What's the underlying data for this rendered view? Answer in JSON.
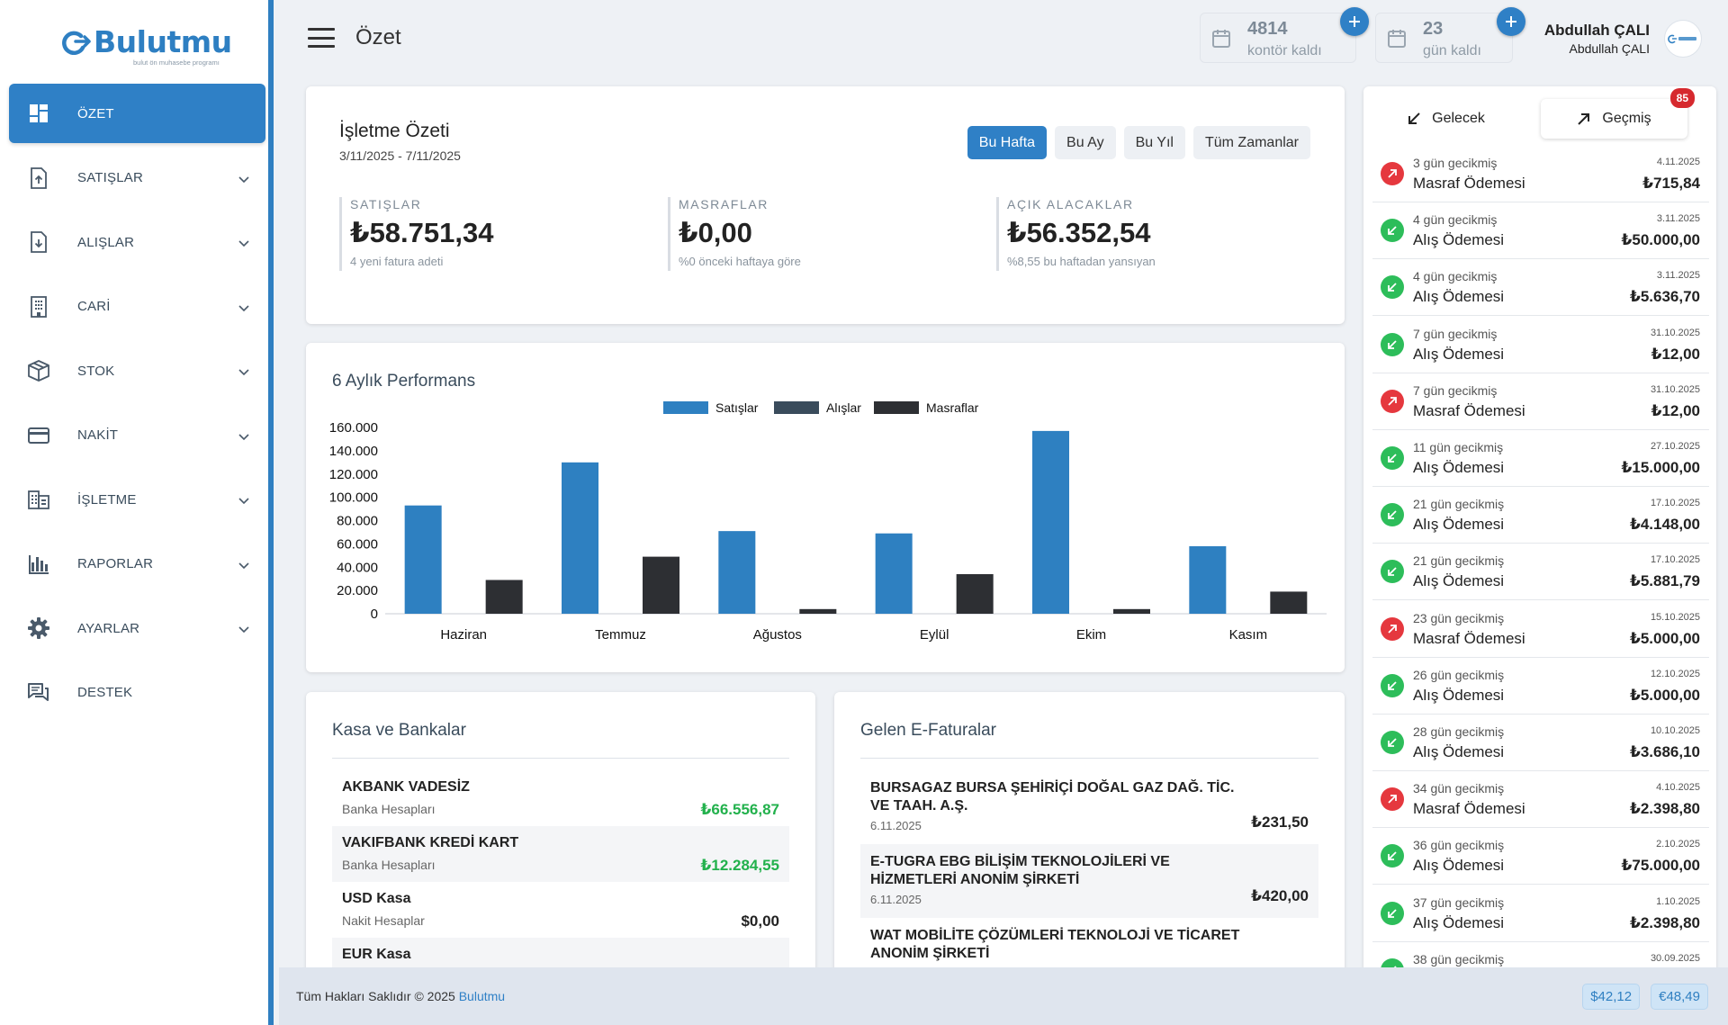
{
  "brand": {
    "name": "Bulutmu",
    "tagline": "bulut ön muhasebe programı"
  },
  "sidebar": {
    "items": [
      {
        "label": "ÖZET",
        "icon": "dashboard-icon",
        "active": true
      },
      {
        "label": "SATIŞLAR",
        "icon": "file-upload-icon"
      },
      {
        "label": "ALIŞLAR",
        "icon": "file-download-icon"
      },
      {
        "label": "CARİ",
        "icon": "building-icon"
      },
      {
        "label": "STOK",
        "icon": "box-icon"
      },
      {
        "label": "NAKİT",
        "icon": "credit-card-icon"
      },
      {
        "label": "İŞLETME",
        "icon": "office-icon"
      },
      {
        "label": "RAPORLAR",
        "icon": "bar-chart-icon"
      },
      {
        "label": "AYARLAR",
        "icon": "gear-icon"
      },
      {
        "label": "DESTEK",
        "icon": "chat-icon"
      }
    ]
  },
  "header": {
    "title": "Özet",
    "credits": {
      "value": "4814",
      "label": "kontör kaldı"
    },
    "days": {
      "value": "23",
      "label": "gün kaldı"
    },
    "user": {
      "name": "Abdullah ÇALI",
      "sub": "Abdullah ÇALI"
    }
  },
  "summary": {
    "title": "İşletme Özeti",
    "date_range": "3/11/2025 - 7/11/2025",
    "filters": [
      "Bu Hafta",
      "Bu Ay",
      "Bu Yıl",
      "Tüm Zamanlar"
    ],
    "metrics": [
      {
        "label": "SATIŞLAR",
        "value": "₺58.751,34",
        "note": "4 yeni fatura adeti"
      },
      {
        "label": "MASRAFLAR",
        "value": "₺0,00",
        "note": "%0 önceki haftaya göre"
      },
      {
        "label": "AÇIK ALACAKLAR",
        "value": "₺56.352,54",
        "note": "%8,55 bu haftadan yansıyan"
      }
    ]
  },
  "performance": {
    "title": "6 Aylık Performans"
  },
  "chart_data": {
    "type": "bar",
    "categories": [
      "Haziran",
      "Temmuz",
      "Ağustos",
      "Eylül",
      "Ekim",
      "Kasım"
    ],
    "series": [
      {
        "name": "Satışlar",
        "color": "#2e80c1",
        "values": [
          93000,
          130000,
          71000,
          69000,
          157000,
          58000
        ]
      },
      {
        "name": "Alışlar",
        "color": "#3a4c5c",
        "values": [
          0,
          0,
          0,
          0,
          0,
          0
        ]
      },
      {
        "name": "Masraflar",
        "color": "#2d2f33",
        "values": [
          29000,
          49000,
          4000,
          34000,
          4000,
          19000
        ]
      }
    ],
    "ylim": [
      0,
      160000
    ],
    "yticks": [
      "0",
      "20.000",
      "40.000",
      "60.000",
      "80.000",
      "100.000",
      "120.000",
      "140.000",
      "160.000"
    ],
    "legend_position": "top-center"
  },
  "kasa": {
    "title": "Kasa ve Bankalar",
    "rows": [
      {
        "name": "AKBANK VADESİZ",
        "type": "Banka Hesapları",
        "amount": "₺66.556,87"
      },
      {
        "name": "VAKIFBANK KREDİ KART",
        "type": "Banka Hesapları",
        "amount": "₺12.284,55"
      },
      {
        "name": "USD Kasa",
        "type": "Nakit Hesaplar",
        "amount": "$0,00"
      },
      {
        "name": "EUR Kasa",
        "type": "",
        "amount": ""
      }
    ]
  },
  "efatura": {
    "title": "Gelen E-Faturalar",
    "rows": [
      {
        "name": "BURSAGAZ BURSA ŞEHİRİÇİ DOĞAL GAZ DAĞ. TİC. VE TAAH. A.Ş.",
        "date": "6.11.2025",
        "amount": "₺231,50"
      },
      {
        "name": "E-TUGRA EBG BİLİŞİM TEKNOLOJİLERİ VE HİZMETLERİ ANONİM ŞİRKETİ",
        "date": "6.11.2025",
        "amount": "₺420,00"
      },
      {
        "name": "WAT MOBİLİTE ÇÖZÜMLERİ TEKNOLOJİ VE TİCARET ANONİM ŞİRKETİ",
        "date": "",
        "amount": ""
      }
    ]
  },
  "payments": {
    "tabs": [
      {
        "label": "Gelecek"
      },
      {
        "label": "Geçmiş",
        "badge": "85"
      }
    ],
    "items": [
      {
        "delay": "3 gün gecikmiş",
        "title": "Masraf Ödemesi",
        "date": "4.11.2025",
        "amount": "₺715,84",
        "kind": "expense"
      },
      {
        "delay": "4 gün gecikmiş",
        "title": "Alış Ödemesi",
        "date": "3.11.2025",
        "amount": "₺50.000,00",
        "kind": "purchase"
      },
      {
        "delay": "4 gün gecikmiş",
        "title": "Alış Ödemesi",
        "date": "3.11.2025",
        "amount": "₺5.636,70",
        "kind": "purchase"
      },
      {
        "delay": "7 gün gecikmiş",
        "title": "Alış Ödemesi",
        "date": "31.10.2025",
        "amount": "₺12,00",
        "kind": "purchase"
      },
      {
        "delay": "7 gün gecikmiş",
        "title": "Masraf Ödemesi",
        "date": "31.10.2025",
        "amount": "₺12,00",
        "kind": "expense"
      },
      {
        "delay": "11 gün gecikmiş",
        "title": "Alış Ödemesi",
        "date": "27.10.2025",
        "amount": "₺15.000,00",
        "kind": "purchase"
      },
      {
        "delay": "21 gün gecikmiş",
        "title": "Alış Ödemesi",
        "date": "17.10.2025",
        "amount": "₺4.148,00",
        "kind": "purchase"
      },
      {
        "delay": "21 gün gecikmiş",
        "title": "Alış Ödemesi",
        "date": "17.10.2025",
        "amount": "₺5.881,79",
        "kind": "purchase"
      },
      {
        "delay": "23 gün gecikmiş",
        "title": "Masraf Ödemesi",
        "date": "15.10.2025",
        "amount": "₺5.000,00",
        "kind": "expense"
      },
      {
        "delay": "26 gün gecikmiş",
        "title": "Alış Ödemesi",
        "date": "12.10.2025",
        "amount": "₺5.000,00",
        "kind": "purchase"
      },
      {
        "delay": "28 gün gecikmiş",
        "title": "Alış Ödemesi",
        "date": "10.10.2025",
        "amount": "₺3.686,10",
        "kind": "purchase"
      },
      {
        "delay": "34 gün gecikmiş",
        "title": "Masraf Ödemesi",
        "date": "4.10.2025",
        "amount": "₺2.398,80",
        "kind": "expense"
      },
      {
        "delay": "36 gün gecikmiş",
        "title": "Alış Ödemesi",
        "date": "2.10.2025",
        "amount": "₺75.000,00",
        "kind": "purchase"
      },
      {
        "delay": "37 gün gecikmiş",
        "title": "Alış Ödemesi",
        "date": "1.10.2025",
        "amount": "₺2.398,80",
        "kind": "purchase"
      },
      {
        "delay": "38 gün gecikmiş",
        "title": "",
        "date": "30.09.2025",
        "amount": "",
        "kind": "purchase"
      }
    ]
  },
  "footer": {
    "text": "Tüm Hakları Saklıdır © 2025",
    "brand": "Bulutmu",
    "rates": [
      "$42,12",
      "€48,49"
    ]
  },
  "colors": {
    "primary": "#2f80c6",
    "success": "#22b14c",
    "danger": "#e5383e"
  }
}
